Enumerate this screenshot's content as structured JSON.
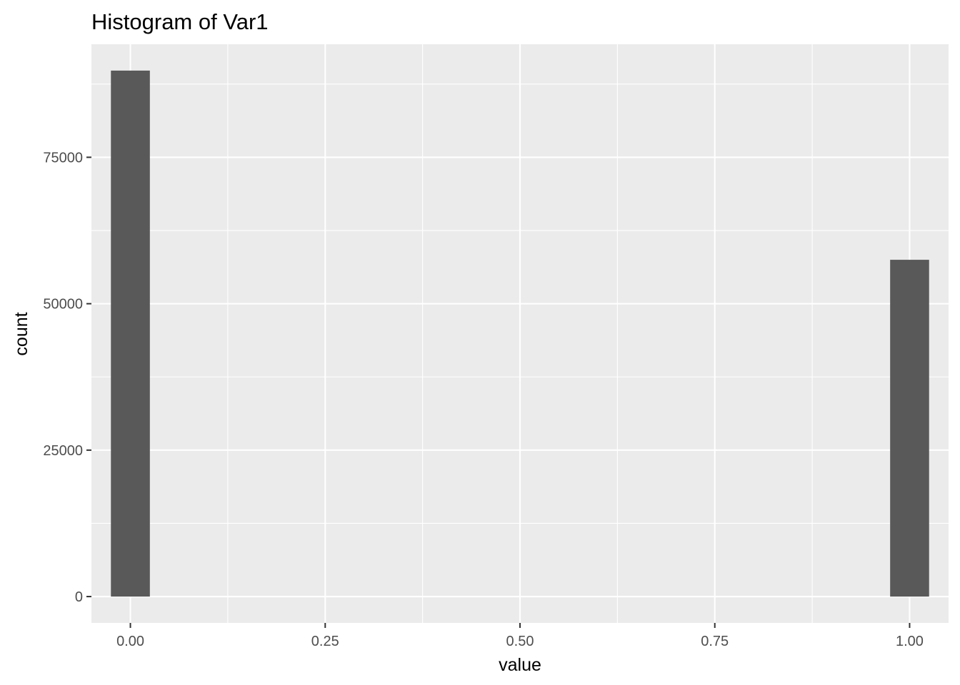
{
  "chart_data": {
    "type": "bar",
    "title": "Histogram of Var1",
    "xlabel": "value",
    "ylabel": "count",
    "bins": [
      {
        "x_start": -0.025,
        "x_end": 0.025,
        "count": 89800
      },
      {
        "x_start": 0.975,
        "x_end": 1.025,
        "count": 57500
      }
    ],
    "xlim": [
      -0.05,
      1.05
    ],
    "ylim": [
      -4500,
      94300
    ],
    "x_ticks": [
      {
        "value": 0.0,
        "label": "0.00"
      },
      {
        "value": 0.25,
        "label": "0.25"
      },
      {
        "value": 0.5,
        "label": "0.50"
      },
      {
        "value": 0.75,
        "label": "0.75"
      },
      {
        "value": 1.0,
        "label": "1.00"
      }
    ],
    "y_ticks": [
      {
        "value": 0,
        "label": "0"
      },
      {
        "value": 25000,
        "label": "25000"
      },
      {
        "value": 50000,
        "label": "50000"
      },
      {
        "value": 75000,
        "label": "75000"
      }
    ],
    "grid": true,
    "legend": "none",
    "colors": {
      "panel_background": "#ebebeb",
      "grid_major": "#ffffff",
      "bar_fill": "#595959",
      "tick_label": "#4d4d4d",
      "tick_mark": "#333333",
      "text": "#000000"
    }
  }
}
